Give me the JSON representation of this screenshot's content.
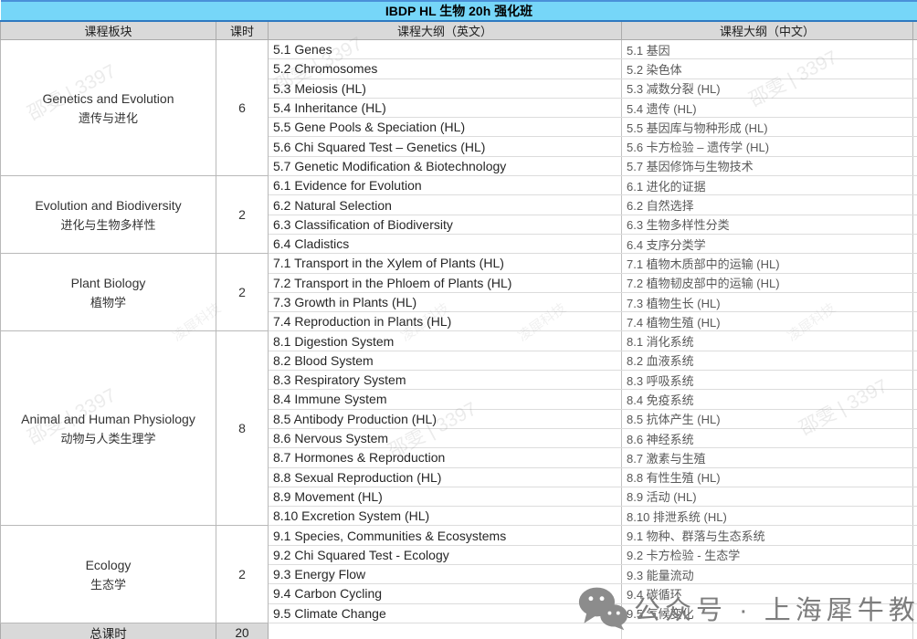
{
  "title": "IBDP HL 生物 20h 强化班",
  "columns": [
    "课程板块",
    "课时",
    "课程大纲（英文）",
    "课程大纲（中文）"
  ],
  "sections": [
    {
      "module_en": "Genetics and Evolution",
      "module_zh": "遗传与进化",
      "hours": "6",
      "topics": [
        {
          "en": "5.1 Genes",
          "zh": "5.1 基因"
        },
        {
          "en": "5.2 Chromosomes",
          "zh": "5.2 染色体"
        },
        {
          "en": "5.3 Meiosis (HL)",
          "zh": "5.3 减数分裂 (HL)"
        },
        {
          "en": "5.4 Inheritance (HL)",
          "zh": "5.4 遗传 (HL)"
        },
        {
          "en": "5.5 Gene Pools & Speciation (HL)",
          "zh": "5.5 基因库与物种形成 (HL)"
        },
        {
          "en": "5.6 Chi Squared Test – Genetics (HL)",
          "zh": "5.6 卡方检验 – 遗传学 (HL)"
        },
        {
          "en": "5.7 Genetic Modification & Biotechnology",
          "zh": "5.7 基因修饰与生物技术"
        }
      ]
    },
    {
      "module_en": "Evolution and Biodiversity",
      "module_zh": "进化与生物多样性",
      "hours": "2",
      "topics": [
        {
          "en": "6.1 Evidence for Evolution",
          "zh": "6.1 进化的证据"
        },
        {
          "en": "6.2 Natural Selection",
          "zh": "6.2 自然选择"
        },
        {
          "en": "6.3 Classification of Biodiversity",
          "zh": "6.3 生物多样性分类"
        },
        {
          "en": "6.4 Cladistics",
          "zh": "6.4 支序分类学"
        }
      ]
    },
    {
      "module_en": "Plant Biology",
      "module_zh": "植物学",
      "hours": "2",
      "topics": [
        {
          "en": "7.1 Transport in the Xylem of Plants (HL)",
          "zh": "7.1 植物木质部中的运输 (HL)"
        },
        {
          "en": "7.2 Transport in the Phloem of Plants (HL)",
          "zh": "7.2 植物韧皮部中的运输 (HL)"
        },
        {
          "en": "7.3 Growth in Plants (HL)",
          "zh": "7.3 植物生长 (HL)"
        },
        {
          "en": "7.4 Reproduction in Plants (HL)",
          "zh": "7.4 植物生殖 (HL)"
        }
      ]
    },
    {
      "module_en": "Animal and Human Physiology",
      "module_zh": "动物与人类生理学",
      "hours": "8",
      "topics": [
        {
          "en": "8.1 Digestion System",
          "zh": "8.1 消化系统"
        },
        {
          "en": "8.2 Blood System",
          "zh": "8.2 血液系统"
        },
        {
          "en": "8.3 Respiratory System",
          "zh": "8.3 呼吸系统"
        },
        {
          "en": "8.4 Immune System",
          "zh": "8.4 免疫系统"
        },
        {
          "en": "8.5 Antibody Production (HL)",
          "zh": "8.5 抗体产生 (HL)"
        },
        {
          "en": "8.6 Nervous System",
          "zh": "8.6 神经系统"
        },
        {
          "en": "8.7 Hormones & Reproduction",
          "zh": "8.7 激素与生殖"
        },
        {
          "en": "8.8 Sexual Reproduction (HL)",
          "zh": "8.8 有性生殖 (HL)"
        },
        {
          "en": "8.9 Movement (HL)",
          "zh": "8.9 活动 (HL)"
        },
        {
          "en": "8.10 Excretion System (HL)",
          "zh": "8.10 排泄系统 (HL)"
        }
      ]
    },
    {
      "module_en": "Ecology",
      "module_zh": "生态学",
      "hours": "2",
      "topics": [
        {
          "en": "9.1 Species, Communities & Ecosystems",
          "zh": "9.1 物种、群落与生态系统"
        },
        {
          "en": "9.2 Chi Squared Test - Ecology",
          "zh": "9.2 卡方检验 - 生态学"
        },
        {
          "en": "9.3 Energy Flow",
          "zh": "9.3 能量流动"
        },
        {
          "en": "9.4 Carbon Cycling",
          "zh": "9.4 碳循环"
        },
        {
          "en": "9.5 Climate Change",
          "zh": "9.5 气候变化"
        }
      ]
    }
  ],
  "footer": {
    "label": "总课时",
    "total": "20"
  },
  "watermarks": {
    "diagonal_name": "邵雯 | 3397",
    "diagonal_tech": "凌犀科技",
    "wechat_text": "公众号 · 上海犀牛教育",
    "wechat_icon": "wechat-icon"
  },
  "colors": {
    "title_bg": "#76D6F8",
    "title_border_top": "#4a90d9",
    "title_border_bottom": "#2e79c1",
    "header_bg": "#D9D9D9",
    "grid_vertical": "#c2c2c2",
    "grid_horizontal": "#dcdcdc",
    "text_en": "#262626",
    "text_zh": "#595959",
    "watermark_gray": "#8a8a8a",
    "wechat_gray": "#7d7d7d"
  }
}
